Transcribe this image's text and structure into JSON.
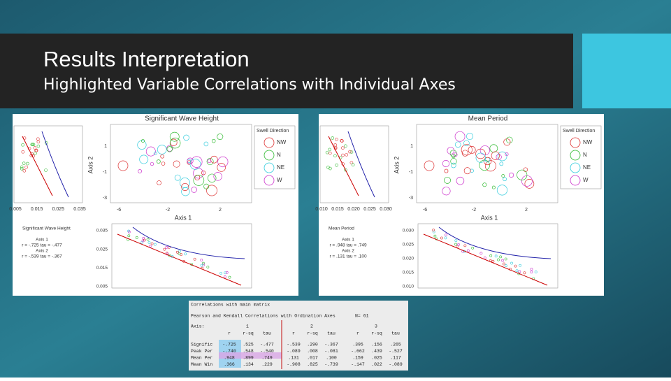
{
  "header": {
    "title": "Results Interpretation",
    "subtitle": "Highlighted Variable Correlations with Individual Axes"
  },
  "panels": [
    {
      "title": "Significant Wave Height",
      "legend_title": "Swell Direction",
      "legend": [
        "NW",
        "N",
        "NE",
        "W"
      ],
      "axis_x": "Axis 1",
      "axis_y": "Axis 2",
      "main_yticks": [
        "1",
        "-1",
        "-3"
      ],
      "main_xticks": [
        "-6",
        "-2",
        "2"
      ],
      "side_xticks": [
        "0.005",
        "0.015",
        "0.025",
        "0.035"
      ],
      "stats": [
        "Significant Wave Height",
        "Axis 1",
        "r = -.725 tau = -.477",
        "Axis 2",
        "r = -.539 tau = -.367"
      ],
      "lower_yticks": [
        "0.035",
        "0.025",
        "0.015",
        "0.005"
      ]
    },
    {
      "title": "Mean Period",
      "legend_title": "Swell Direction",
      "legend": [
        "NW",
        "N",
        "NE",
        "W"
      ],
      "axis_x": "Axis 1",
      "axis_y": "Axis 2",
      "main_yticks": [
        "1",
        "-1",
        "-3"
      ],
      "main_xticks": [
        "-6",
        "-2",
        "2"
      ],
      "side_xticks": [
        "0.010",
        "0.015",
        "0.020",
        "0.025",
        "0.030"
      ],
      "stats": [
        "Mean Period",
        "Axis 1",
        "r = .948 tau = .749",
        "Axis 2",
        "r = .131 tau = .100"
      ],
      "lower_yticks": [
        "0.030",
        "0.025",
        "0.020",
        "0.015",
        "0.010"
      ]
    }
  ],
  "table": {
    "title": "Correlations with main matrix",
    "subtitle": "Pearson and Kendall Correlations with Ordination Axes",
    "n": "N= 61",
    "axis_label": "Axis:",
    "axes": [
      "1",
      "2",
      "3"
    ],
    "columns": [
      "r",
      "r-sq",
      "tau"
    ],
    "rows": [
      {
        "label": "Signific",
        "values": [
          "-.725",
          ".525",
          "-.477",
          "-.539",
          ".290",
          "-.367",
          ".395",
          ".156",
          ".265"
        ]
      },
      {
        "label": "Peak Per",
        "values": [
          "-.740",
          ".548",
          "-.540",
          "-.089",
          ".008",
          "-.081",
          "-.662",
          ".439",
          "-.527"
        ]
      },
      {
        "label": "Mean Per",
        "values": [
          ".948",
          ".899",
          ".749",
          ".131",
          ".017",
          ".100",
          ".159",
          ".025",
          ".117"
        ]
      },
      {
        "label": "Mean Win",
        "values": [
          ".366",
          ".134",
          ".229",
          "-.908",
          ".825",
          "-.739",
          "-.147",
          ".022",
          "-.089"
        ]
      }
    ]
  }
}
